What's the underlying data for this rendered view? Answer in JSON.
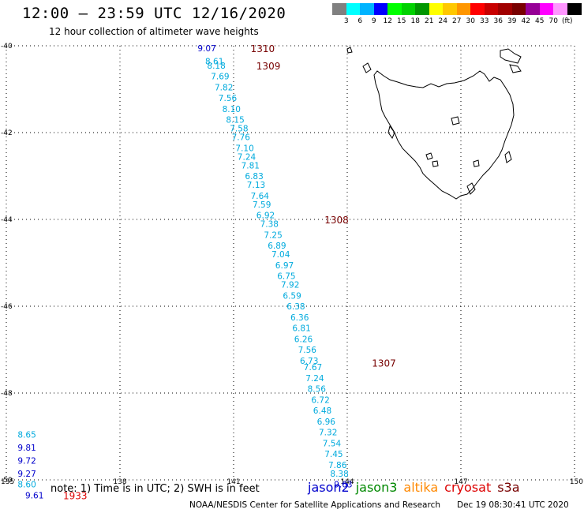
{
  "header": {
    "title": "12:00 – 23:59 UTC 12/16/2020",
    "subtitle": "12 hour collection of altimeter wave heights"
  },
  "scale": {
    "unit": "(ft)",
    "colors": [
      "#808080",
      "#00ffff",
      "#00b4ff",
      "#0000ff",
      "#00ff00",
      "#00d200",
      "#009600",
      "#ffff00",
      "#ffc800",
      "#ff9600",
      "#ff0000",
      "#c80000",
      "#a00000",
      "#780000",
      "#960096",
      "#ff00ff",
      "#ff96ff",
      "#000000"
    ],
    "labels": [
      "3",
      "6",
      "9",
      "12",
      "15",
      "18",
      "21",
      "24",
      "27",
      "30",
      "33",
      "36",
      "39",
      "42",
      "45",
      "70"
    ]
  },
  "axes": {
    "lon_ticks": [
      "135",
      "138",
      "141",
      "144",
      "147",
      "150"
    ],
    "lat_ticks": [
      "-40",
      "-42",
      "-44",
      "-46",
      "-48",
      "-50"
    ]
  },
  "colors": {
    "jason2": "#0000cc",
    "jason3": "#008800",
    "altika": "#ff8800",
    "cryosat": "#dd0000",
    "s3a": "#770000",
    "light": "#00aadd"
  },
  "tracks": {
    "main": [
      {
        "lon": 140.05,
        "lat": -40.05,
        "v": "9.07",
        "c": "jason2"
      },
      {
        "lon": 140.25,
        "lat": -40.35,
        "v": "8.61",
        "c": "light"
      },
      {
        "lon": 140.3,
        "lat": -40.45,
        "v": "8.18",
        "c": "light"
      },
      {
        "lon": 140.4,
        "lat": -40.7,
        "v": "7.69",
        "c": "light"
      },
      {
        "lon": 140.5,
        "lat": -40.95,
        "v": "7.82",
        "c": "light"
      },
      {
        "lon": 140.6,
        "lat": -41.2,
        "v": "7.56",
        "c": "light"
      },
      {
        "lon": 140.7,
        "lat": -41.45,
        "v": "8.10",
        "c": "light"
      },
      {
        "lon": 140.8,
        "lat": -41.7,
        "v": "8.15",
        "c": "light"
      },
      {
        "lon": 140.9,
        "lat": -41.9,
        "v": "7.58",
        "c": "light"
      },
      {
        "lon": 140.95,
        "lat": -42.1,
        "v": "7.76",
        "c": "light"
      },
      {
        "lon": 141.05,
        "lat": -42.35,
        "v": "7.10",
        "c": "light"
      },
      {
        "lon": 141.1,
        "lat": -42.55,
        "v": "7.24",
        "c": "light"
      },
      {
        "lon": 141.2,
        "lat": -42.75,
        "v": "7.81",
        "c": "light"
      },
      {
        "lon": 141.3,
        "lat": -43.0,
        "v": "6.83",
        "c": "light"
      },
      {
        "lon": 141.35,
        "lat": -43.2,
        "v": "7.13",
        "c": "light"
      },
      {
        "lon": 141.45,
        "lat": -43.45,
        "v": "7.64",
        "c": "light"
      },
      {
        "lon": 141.5,
        "lat": -43.65,
        "v": "7.59",
        "c": "light"
      },
      {
        "lon": 141.6,
        "lat": -43.9,
        "v": "6.92",
        "c": "light"
      },
      {
        "lon": 141.7,
        "lat": -44.1,
        "v": "7.38",
        "c": "light"
      },
      {
        "lon": 141.8,
        "lat": -44.35,
        "v": "7.25",
        "c": "light"
      },
      {
        "lon": 141.9,
        "lat": -44.6,
        "v": "6.89",
        "c": "light"
      },
      {
        "lon": 142.0,
        "lat": -44.8,
        "v": "7.04",
        "c": "light"
      },
      {
        "lon": 142.1,
        "lat": -45.05,
        "v": "6.97",
        "c": "light"
      },
      {
        "lon": 142.15,
        "lat": -45.3,
        "v": "6.75",
        "c": "light"
      },
      {
        "lon": 142.25,
        "lat": -45.5,
        "v": "7.92",
        "c": "light"
      },
      {
        "lon": 142.3,
        "lat": -45.75,
        "v": "6.59",
        "c": "light"
      },
      {
        "lon": 142.4,
        "lat": -46.0,
        "v": "6.38",
        "c": "light"
      },
      {
        "lon": 142.5,
        "lat": -46.25,
        "v": "6.36",
        "c": "light"
      },
      {
        "lon": 142.55,
        "lat": -46.5,
        "v": "6.81",
        "c": "light"
      },
      {
        "lon": 142.6,
        "lat": -46.75,
        "v": "6.26",
        "c": "light"
      },
      {
        "lon": 142.7,
        "lat": -47.0,
        "v": "7.56",
        "c": "light"
      },
      {
        "lon": 142.75,
        "lat": -47.25,
        "v": "6.73",
        "c": "light"
      },
      {
        "lon": 142.85,
        "lat": -47.4,
        "v": "7.67",
        "c": "light"
      },
      {
        "lon": 142.9,
        "lat": -47.65,
        "v": "7.24",
        "c": "light"
      },
      {
        "lon": 142.95,
        "lat": -47.9,
        "v": "8.56",
        "c": "light"
      },
      {
        "lon": 143.05,
        "lat": -48.15,
        "v": "6.72",
        "c": "light"
      },
      {
        "lon": 143.1,
        "lat": -48.4,
        "v": "6.48",
        "c": "light"
      },
      {
        "lon": 143.2,
        "lat": -48.65,
        "v": "6.96",
        "c": "light"
      },
      {
        "lon": 143.25,
        "lat": -48.9,
        "v": "7.32",
        "c": "light"
      },
      {
        "lon": 143.35,
        "lat": -49.15,
        "v": "7.54",
        "c": "light"
      },
      {
        "lon": 143.4,
        "lat": -49.4,
        "v": "7.45",
        "c": "light"
      },
      {
        "lon": 143.5,
        "lat": -49.65,
        "v": "7.86",
        "c": "light"
      },
      {
        "lon": 143.55,
        "lat": -49.85,
        "v": "8.38",
        "c": "light"
      },
      {
        "lon": 143.65,
        "lat": -50.1,
        "v": "9.63",
        "c": "jason2"
      }
    ],
    "corner": [
      {
        "lon": 135.3,
        "lat": -48.95,
        "v": "8.65",
        "c": "light"
      },
      {
        "lon": 135.3,
        "lat": -49.25,
        "v": "9.81",
        "c": "jason2"
      },
      {
        "lon": 135.3,
        "lat": -49.55,
        "v": "9.72",
        "c": "jason2"
      },
      {
        "lon": 135.3,
        "lat": -49.85,
        "v": "9.27",
        "c": "jason2"
      },
      {
        "lon": 135.3,
        "lat": -50.1,
        "v": "8.60",
        "c": "light"
      },
      {
        "lon": 135.5,
        "lat": -50.35,
        "v": "9.61",
        "c": "jason2"
      }
    ],
    "times": [
      {
        "lon": 141.45,
        "lat": -40.05,
        "t": "1310",
        "c": "s3a"
      },
      {
        "lon": 141.6,
        "lat": -40.45,
        "t": "1309",
        "c": "s3a"
      },
      {
        "lon": 143.4,
        "lat": -44.0,
        "t": "1308",
        "c": "s3a"
      },
      {
        "lon": 144.65,
        "lat": -47.3,
        "t": "1307",
        "c": "s3a"
      },
      {
        "lon": 136.5,
        "lat": -50.35,
        "t": "1933",
        "c": "cryosat"
      }
    ]
  },
  "footer": {
    "note": "note:  1) Time is in UTC;  2) SWH is in feet",
    "satellites": [
      {
        "name": "jason2",
        "color": "#0000cc"
      },
      {
        "name": "jason3",
        "color": "#008800"
      },
      {
        "name": "altika",
        "color": "#ff8800"
      },
      {
        "name": "cryosat",
        "color": "#dd0000"
      },
      {
        "name": "s3a",
        "color": "#770000"
      }
    ],
    "credit": "NOAA/NESDIS Center for Satellite Applications and Research",
    "timestamp": "Dec 19 08:30:41 UTC 2020"
  }
}
